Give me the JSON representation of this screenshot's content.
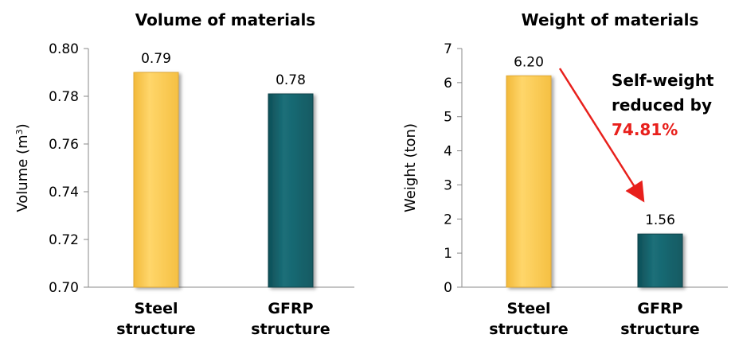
{
  "chart_data": [
    {
      "type": "bar",
      "title": "Volume of materials",
      "ylabel_main": "Volume (m",
      "ylabel_sup": "3",
      "ylabel_tail": ")",
      "categories": [
        [
          "Steel",
          "structure"
        ],
        [
          "GFRP",
          "structure"
        ]
      ],
      "values": [
        0.79,
        0.781
      ],
      "data_labels": [
        "0.79",
        "0.78"
      ],
      "ylim": [
        0.7,
        0.8
      ],
      "yticks": [
        "0.70",
        "0.72",
        "0.74",
        "0.76",
        "0.78",
        "0.80"
      ],
      "ytick_values": [
        0.7,
        0.72,
        0.74,
        0.76,
        0.78,
        0.8
      ],
      "colors": [
        "#ffd155",
        "#17656e"
      ]
    },
    {
      "type": "bar",
      "title": "Weight of materials",
      "ylabel": "Weight (ton)",
      "categories": [
        [
          "Steel",
          "structure"
        ],
        [
          "GFRP",
          "structure"
        ]
      ],
      "values": [
        6.2,
        1.56
      ],
      "data_labels": [
        "6.20",
        "1.56"
      ],
      "ylim": [
        0,
        7
      ],
      "yticks": [
        "0",
        "1",
        "2",
        "3",
        "4",
        "5",
        "6",
        "7"
      ],
      "ytick_values": [
        0,
        1,
        2,
        3,
        4,
        5,
        6,
        7
      ],
      "colors": [
        "#ffd155",
        "#17656e"
      ],
      "annotation": {
        "lines": [
          "Self-weight",
          "reduced by"
        ],
        "highlight": "74.81%",
        "arrow_color": "#e8201c"
      }
    }
  ]
}
